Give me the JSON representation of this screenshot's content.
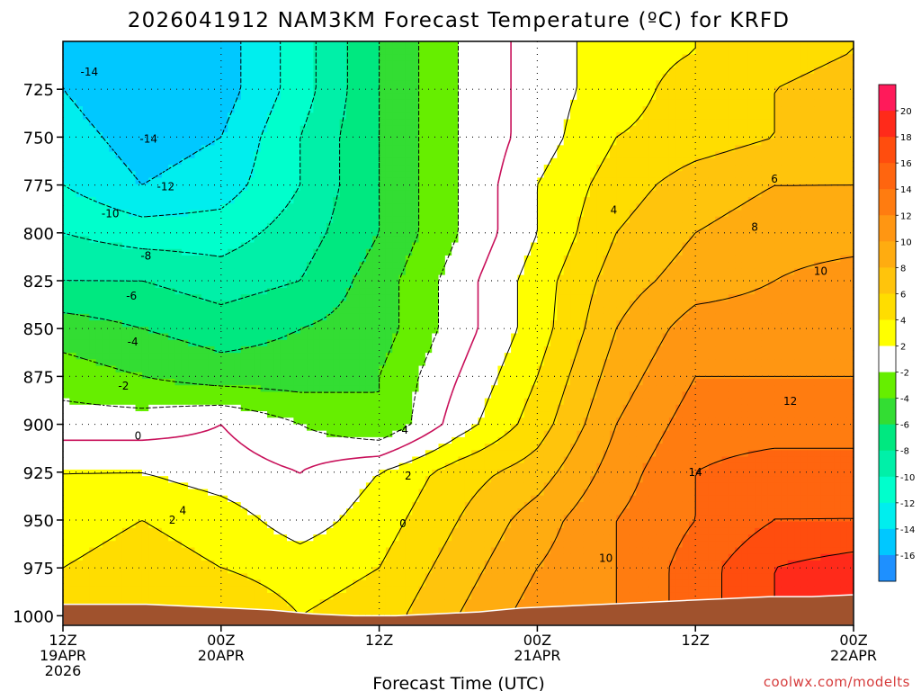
{
  "chart_data": {
    "type": "heatmap",
    "title": "2026041912  NAM3KM Forecast Temperature (ºC) for KRFD",
    "xlabel": "Forecast Time (UTC)",
    "ylabel": "",
    "credit": "coolwx.com/modelts",
    "x_ticks": [
      {
        "hour": 0,
        "line1": "12Z",
        "line2": "19APR",
        "line3": "2026"
      },
      {
        "hour": 12,
        "line1": "00Z",
        "line2": "20APR",
        "line3": ""
      },
      {
        "hour": 24,
        "line1": "12Z",
        "line2": "",
        "line3": ""
      },
      {
        "hour": 36,
        "line1": "00Z",
        "line2": "21APR",
        "line3": ""
      },
      {
        "hour": 48,
        "line1": "12Z",
        "line2": "",
        "line3": ""
      },
      {
        "hour": 60,
        "line1": "00Z",
        "line2": "22APR",
        "line3": ""
      }
    ],
    "y_ticks": [
      "725",
      "750",
      "775",
      "800",
      "825",
      "850",
      "875",
      "900",
      "925",
      "950",
      "975",
      "1000"
    ],
    "ylim_hPa": [
      700,
      1005
    ],
    "xlim_hours": [
      0,
      60
    ],
    "colorbar": {
      "ticks": [
        20,
        18,
        16,
        14,
        12,
        10,
        8,
        6,
        4,
        2,
        -2,
        -4,
        -6,
        -8,
        -10,
        -12,
        -14,
        -16
      ],
      "bands": [
        {
          "lo": 20,
          "hi": 22,
          "color": "#ff1a5a"
        },
        {
          "lo": 18,
          "hi": 20,
          "color": "#ff2a1a"
        },
        {
          "lo": 16,
          "hi": 18,
          "color": "#ff4d0e"
        },
        {
          "lo": 14,
          "hi": 16,
          "color": "#ff650f"
        },
        {
          "lo": 12,
          "hi": 14,
          "color": "#ff7c10"
        },
        {
          "lo": 10,
          "hi": 12,
          "color": "#ff9612"
        },
        {
          "lo": 8,
          "hi": 10,
          "color": "#ffac10"
        },
        {
          "lo": 6,
          "hi": 8,
          "color": "#ffc40c"
        },
        {
          "lo": 4,
          "hi": 6,
          "color": "#ffdd00"
        },
        {
          "lo": 2,
          "hi": 4,
          "color": "#ffff00"
        },
        {
          "lo": -2,
          "hi": 2,
          "color": "#ffffff"
        },
        {
          "lo": -4,
          "hi": -2,
          "color": "#66ee00"
        },
        {
          "lo": -6,
          "hi": -4,
          "color": "#33dd33"
        },
        {
          "lo": -8,
          "hi": -6,
          "color": "#00e880"
        },
        {
          "lo": -10,
          "hi": -8,
          "color": "#00f0a8"
        },
        {
          "lo": -12,
          "hi": -10,
          "color": "#00ffcc"
        },
        {
          "lo": -14,
          "hi": -12,
          "color": "#00eeee"
        },
        {
          "lo": -16,
          "hi": -14,
          "color": "#00c8ff"
        },
        {
          "lo": -18,
          "hi": -16,
          "color": "#1e90ff"
        }
      ]
    },
    "ground_color": "#a0522d",
    "surface_pressure_hPa": [
      994,
      994,
      994,
      995,
      996,
      997,
      999,
      1000,
      1000,
      999,
      998,
      996,
      995,
      994,
      993,
      992,
      991,
      990,
      990,
      989
    ],
    "temperature_field": {
      "hours": [
        0,
        6,
        12,
        18,
        24,
        30,
        36,
        42,
        48,
        54,
        60
      ],
      "levels_hPa": [
        705,
        725,
        750,
        775,
        800,
        825,
        850,
        875,
        900,
        925,
        950,
        975,
        1000
      ],
      "values_C": [
        [
          -14,
          -16,
          -15,
          -11,
          -6,
          -2,
          1,
          3,
          4,
          5,
          6
        ],
        [
          -14,
          -16,
          -15,
          -11,
          -6,
          -2,
          1,
          3,
          5,
          6,
          7
        ],
        [
          -13,
          -15,
          -14,
          -10,
          -6,
          -2,
          1,
          4,
          5,
          6,
          7
        ],
        [
          -12,
          -14,
          -13,
          -10,
          -6,
          -2,
          2,
          5,
          7,
          8,
          8
        ],
        [
          -10,
          -11,
          -11,
          -9,
          -6,
          -2,
          2,
          6,
          8,
          9,
          9
        ],
        [
          -8,
          -8,
          -9,
          -8,
          -5,
          -1,
          3,
          7,
          9,
          10,
          11
        ],
        [
          -5,
          -6,
          -7,
          -6,
          -5,
          -1,
          3,
          8,
          11,
          11,
          11
        ],
        [
          -3,
          -4,
          -5,
          -5,
          -4,
          0,
          4,
          9,
          12,
          12,
          12
        ],
        [
          -1,
          -1,
          0,
          -2,
          -4,
          1,
          5,
          10,
          13,
          13,
          13
        ],
        [
          2,
          2,
          1,
          0,
          2,
          5,
          7,
          11,
          14,
          15,
          15
        ],
        [
          3,
          4,
          3,
          1,
          3,
          6,
          9,
          12,
          14,
          16,
          16
        ],
        [
          4,
          5,
          4,
          3,
          4,
          7,
          10,
          12,
          15,
          18,
          19
        ],
        [
          5,
          6,
          6,
          4,
          5,
          8,
          11,
          12,
          15,
          18,
          20
        ]
      ]
    },
    "contour_labels": [
      {
        "text": "-14",
        "hour": 2.0,
        "p": 716
      },
      {
        "text": "-14",
        "hour": 6.5,
        "p": 751
      },
      {
        "text": "-12",
        "hour": 7.8,
        "p": 776
      },
      {
        "text": "-10",
        "hour": 3.6,
        "p": 790
      },
      {
        "text": "-8",
        "hour": 6.3,
        "p": 812
      },
      {
        "text": "-6",
        "hour": 5.2,
        "p": 833
      },
      {
        "text": "-4",
        "hour": 5.3,
        "p": 857
      },
      {
        "text": "-2",
        "hour": 4.6,
        "p": 880
      },
      {
        "text": "0",
        "hour": 5.7,
        "p": 906
      },
      {
        "text": "-4",
        "hour": 25.8,
        "p": 903
      },
      {
        "text": "2",
        "hour": 26.2,
        "p": 927
      },
      {
        "text": "0",
        "hour": 25.8,
        "p": 952
      },
      {
        "text": "2",
        "hour": 8.3,
        "p": 950
      },
      {
        "text": "4",
        "hour": 9.1,
        "p": 945
      },
      {
        "text": "4",
        "hour": 41.8,
        "p": 788
      },
      {
        "text": "6",
        "hour": 54.0,
        "p": 772
      },
      {
        "text": "8",
        "hour": 52.5,
        "p": 797
      },
      {
        "text": "10",
        "hour": 57.5,
        "p": 820
      },
      {
        "text": "12",
        "hour": 55.2,
        "p": 888
      },
      {
        "text": "14",
        "hour": 48.0,
        "p": 925
      },
      {
        "text": "10",
        "hour": 41.2,
        "p": 970
      }
    ]
  }
}
